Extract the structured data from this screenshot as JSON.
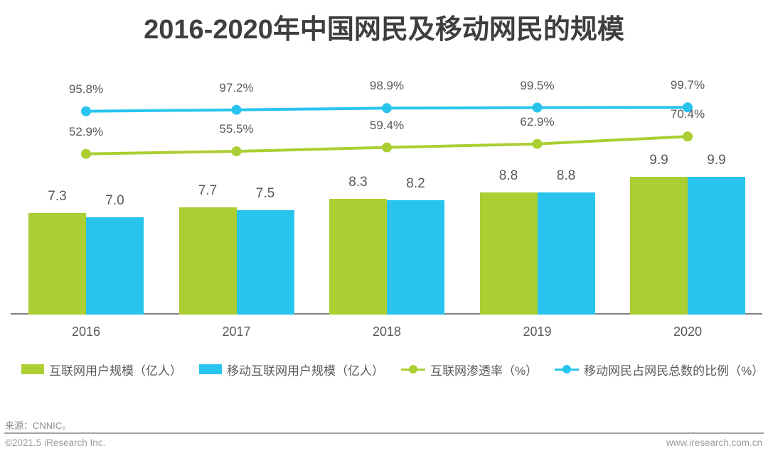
{
  "chart_data": {
    "type": "combo-bar-line",
    "title": "2016-2020年中国网民及移动网民的规模",
    "categories": [
      "2016",
      "2017",
      "2018",
      "2019",
      "2020"
    ],
    "bar_series": [
      {
        "key": "internet-users",
        "name": "互联网用户规模（亿人）",
        "color": "#abce32",
        "values": [
          7.3,
          7.7,
          8.3,
          8.8,
          9.9
        ]
      },
      {
        "key": "mobile-internet-users",
        "name": "移动互联网用户规模（亿人）",
        "color": "#28c4ee",
        "values": [
          7.0,
          7.5,
          8.2,
          8.8,
          9.9
        ]
      }
    ],
    "line_series": [
      {
        "key": "internet-penetration",
        "name": "互联网渗透率（%）",
        "color": "#abce32",
        "values": [
          52.9,
          55.5,
          59.4,
          62.9,
          70.4
        ]
      },
      {
        "key": "mobile-share-of-netizens",
        "name": "移动网民占网民总数的比例（%）",
        "color": "#28c4ee",
        "values": [
          95.8,
          97.2,
          98.9,
          99.5,
          99.7
        ]
      }
    ],
    "ylim_bars": [
      0,
      10.5
    ],
    "ylim_lines": [
      0,
      110
    ],
    "grid": false,
    "legend_position": "bottom"
  },
  "footer": {
    "source_label": "来源：CNNIC。",
    "copyright": "©2021.5 iResearch Inc.",
    "website": "www.iresearch.com.cn"
  }
}
